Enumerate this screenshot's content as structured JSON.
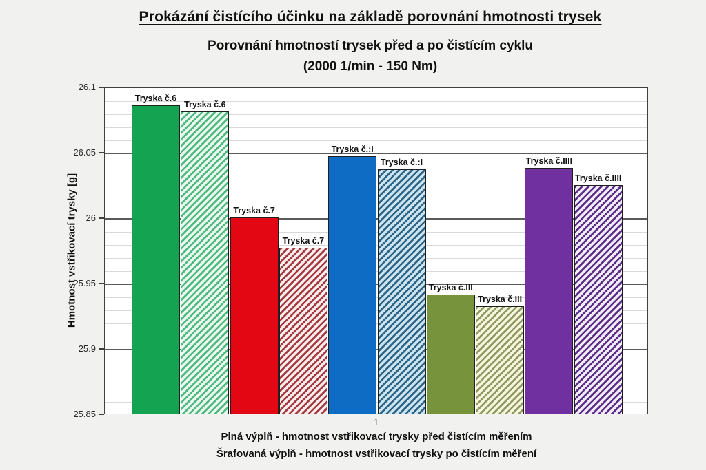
{
  "page": {
    "background": "#F1F1F0",
    "plot_background": "#FFFFFF"
  },
  "header": {
    "main_title": "Prokázání čistícího účinku na základě porovnání hmotnosti trysek",
    "subtitle_line1": "Porovnání hmotností trysek před a po čistícím cyklu",
    "subtitle_line2": "(2000 1/min - 150 Nm)"
  },
  "legend": {
    "line1": "Plná výplň - hmotnost vstřikovací trysky před čistícím měřením",
    "line2": "Šrafovaná výplň - hmotnost vstřikovací trysky po čistícím měření"
  },
  "chart_data": {
    "type": "bar",
    "title": "Porovnání hmotností trysek před a po čistícím cyklu (2000 1/min - 150 Nm)",
    "xlabel": "",
    "ylabel": "Hmotnost vstřikovací trysky [g]",
    "ylim": [
      25.85,
      26.1
    ],
    "y_major_ticks": [
      "26.1",
      "26.05",
      "26",
      "25.95",
      "25.9",
      "25.85"
    ],
    "y_minor_step": 0.01,
    "grid": true,
    "legend_position": "bottom",
    "categories": [
      "1"
    ],
    "x_category_label": "1",
    "groups": [
      "Tryska č.6",
      "Tryska č.7",
      "Tryska č.:I",
      "Tryska č.III",
      "Tryska č.IIII"
    ],
    "series": [
      {
        "name": "Plná výplň - hmotnost vstřikovací trysky před čistícím měřením",
        "values": [
          26.087,
          26.001,
          26.048,
          25.942,
          26.039
        ]
      },
      {
        "name": "Šrafovaná výplň - hmotnost vstřikovací trysky po čistícím měření",
        "values": [
          26.082,
          25.978,
          26.038,
          25.933,
          26.026
        ]
      }
    ],
    "bars": [
      {
        "label": "Tryska č.6",
        "value": 26.087,
        "fill": "solid",
        "color": "#14A351"
      },
      {
        "label": "Tryska č.6",
        "value": 26.082,
        "fill": "hatched",
        "stripe": "#4DB97E",
        "bg": "#EBF8F0"
      },
      {
        "label": "Tryska č.7",
        "value": 26.001,
        "fill": "solid",
        "color": "#E30613"
      },
      {
        "label": "Tryska č.7",
        "value": 25.978,
        "fill": "hatched",
        "stripe": "#A43A40",
        "bg": "#F9ECEC"
      },
      {
        "label": "Tryska č.:I",
        "value": 26.048,
        "fill": "solid",
        "color": "#0F6CC4"
      },
      {
        "label": "Tryska č.:I",
        "value": 26.038,
        "fill": "hatched",
        "stripe": "#2E6384",
        "bg": "#CBE4F2"
      },
      {
        "label": "Tryska č.III",
        "value": 25.942,
        "fill": "solid",
        "color": "#77933C"
      },
      {
        "label": "Tryska č.III",
        "value": 25.933,
        "fill": "hatched",
        "stripe": "#8F9862",
        "bg": "#F5F7DC"
      },
      {
        "label": "Tryska č.IIII",
        "value": 26.039,
        "fill": "solid",
        "color": "#7030A0"
      },
      {
        "label": "Tryska č.IIII",
        "value": 26.026,
        "fill": "hatched",
        "stripe": "#5B2D86",
        "bg": "#F1ECF8"
      }
    ],
    "bar_border_color": "#1F1F1F"
  }
}
